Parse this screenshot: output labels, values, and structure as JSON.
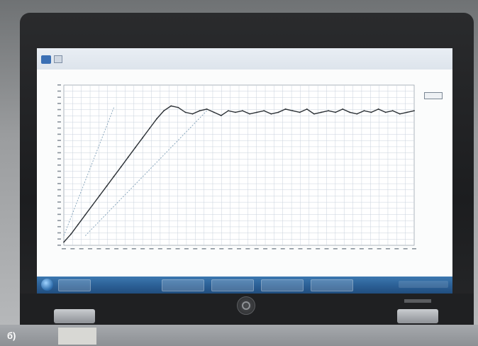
{
  "caption": "б)",
  "chart_data": {
    "type": "line",
    "series": [
      {
        "values": [
          0.02,
          0.07,
          0.13,
          0.19,
          0.25,
          0.31,
          0.37,
          0.43,
          0.49,
          0.55,
          0.61,
          0.67,
          0.73,
          0.79,
          0.84,
          0.87,
          0.86,
          0.83,
          0.82,
          0.84,
          0.85,
          0.83,
          0.81,
          0.84,
          0.83,
          0.84,
          0.82,
          0.83,
          0.84,
          0.82,
          0.83,
          0.85,
          0.84,
          0.83,
          0.85,
          0.82,
          0.83,
          0.84,
          0.83,
          0.85,
          0.83,
          0.82,
          0.84,
          0.83,
          0.85,
          0.83,
          0.84,
          0.82,
          0.83,
          0.84
        ]
      }
    ],
    "guide_lines": [
      {
        "from": [
          0,
          0.06
        ],
        "to": [
          7,
          0.86
        ]
      },
      {
        "from": [
          3,
          0.06
        ],
        "to": [
          20,
          0.84
        ]
      }
    ],
    "grid": true
  }
}
